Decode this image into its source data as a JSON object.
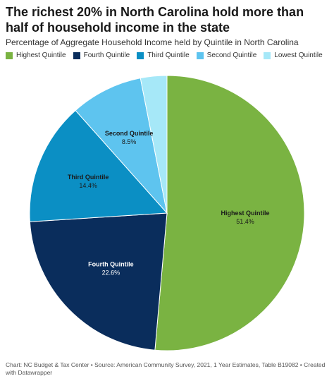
{
  "title": "The richest 20% in North Carolina hold more than half of household income in the state",
  "subtitle": "Percentage of Aggregate Household Income held by Quintile in North Carolina",
  "footer": "Chart: NC Budget & Tax Center • Source: American Community Survey, 2021, 1 Year Estimates, Table B19082 • Created with Datawrapper",
  "chart_data": {
    "type": "pie",
    "title": "The richest 20% in North Carolina hold more than half of household income in the state",
    "subtitle": "Percentage of Aggregate Household Income held by Quintile in North Carolina",
    "legend_position": "top-left",
    "unit": "%",
    "slices": [
      {
        "label": "Highest Quintile",
        "value": 51.4,
        "display": "51.4%",
        "color": "#7ab342",
        "label_color": "#1a1a1a",
        "show_label": true
      },
      {
        "label": "Fourth Quintile",
        "value": 22.6,
        "display": "22.6%",
        "color": "#0a2d5c",
        "label_color": "#ffffff",
        "show_label": true
      },
      {
        "label": "Third Quintile",
        "value": 14.4,
        "display": "14.4%",
        "color": "#0b8fc4",
        "label_color": "#1a1a1a",
        "show_label": true
      },
      {
        "label": "Second Quintile",
        "value": 8.5,
        "display": "8.5%",
        "color": "#5ec4ef",
        "label_color": "#1a1a1a",
        "show_label": true
      },
      {
        "label": "Lowest Quintile",
        "value": 3.1,
        "display": "3.1%",
        "color": "#a6e8f8",
        "label_color": "#1a1a1a",
        "show_label": false
      }
    ]
  }
}
